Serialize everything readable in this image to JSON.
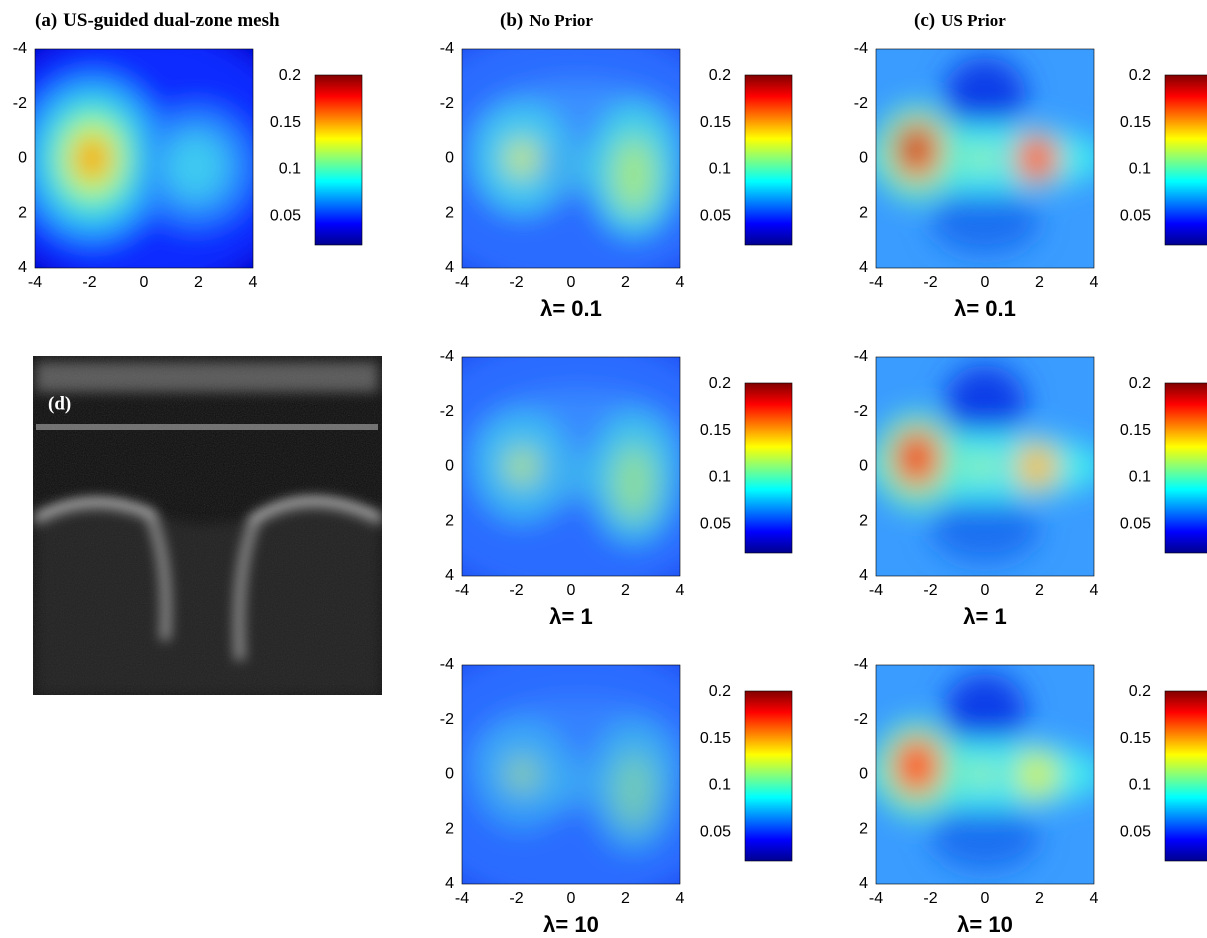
{
  "axis_ticks": [
    -4,
    -2,
    0,
    2,
    4
  ],
  "colorbar_ticks": [
    0.2,
    0.15,
    0.1,
    0.05
  ],
  "panel_a": {
    "label": "(a)",
    "title": "US-guided dual-zone mesh"
  },
  "panel_d": {
    "label": "(d)"
  },
  "columns": [
    {
      "label": "(b)",
      "title": "No Prior",
      "plots": [
        {
          "caption": "λ= 0.1"
        },
        {
          "caption": "λ= 1"
        },
        {
          "caption": "λ= 10"
        }
      ]
    },
    {
      "label": "(c)",
      "title": "US Prior",
      "plots": [
        {
          "caption": "λ= 0.1"
        },
        {
          "caption": "λ= 1"
        },
        {
          "caption": "λ= 10"
        }
      ]
    }
  ]
}
